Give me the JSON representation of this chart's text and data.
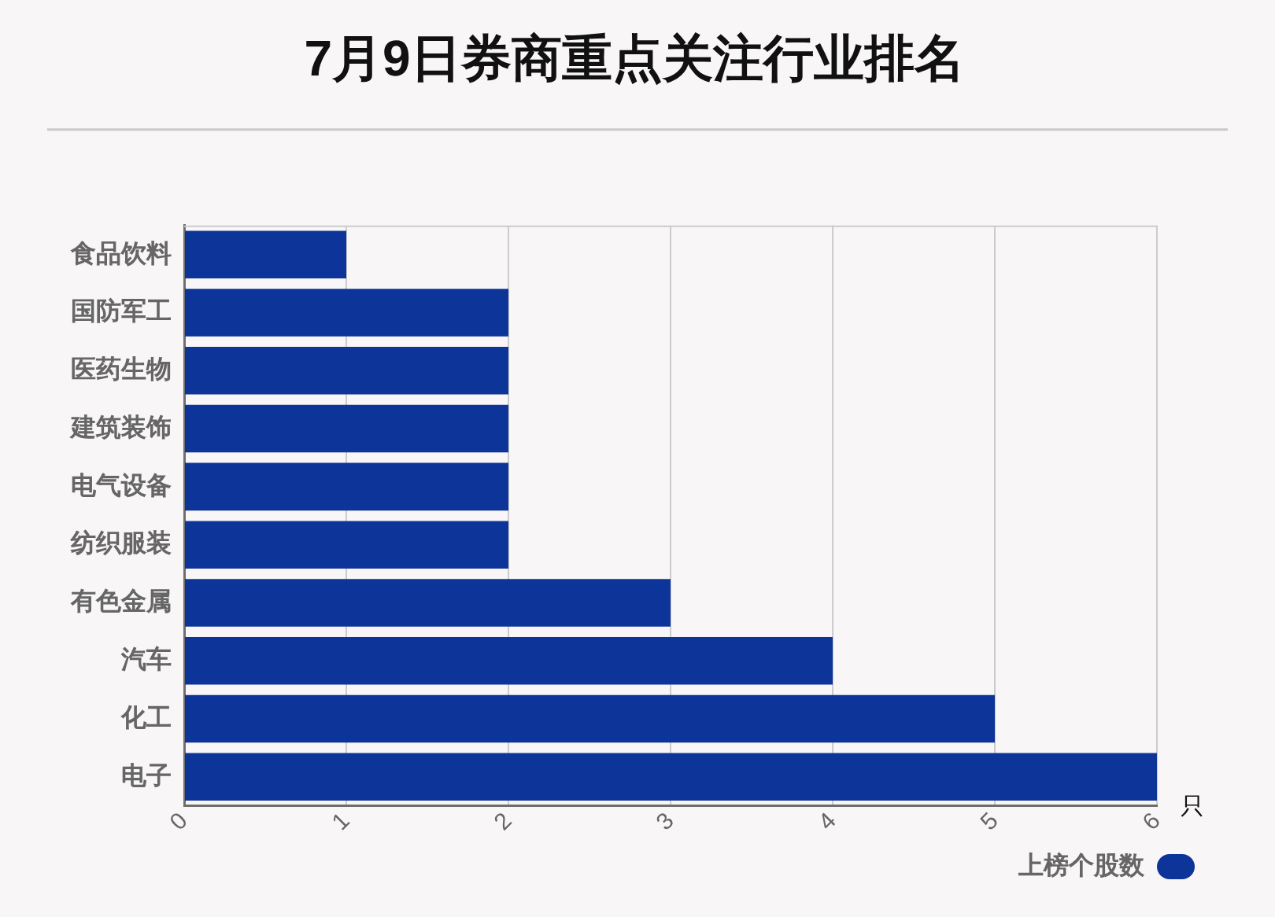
{
  "chart_data": {
    "type": "bar",
    "orientation": "horizontal",
    "title": "7月9日券商重点关注行业排名",
    "xlabel": "只",
    "categories": [
      "食品饮料",
      "国防军工",
      "医药生物",
      "建筑装饰",
      "电气设备",
      "纺织服装",
      "有色金属",
      "汽车",
      "化工",
      "电子"
    ],
    "series": [
      {
        "name": "上榜个股数",
        "color": "#0d3599",
        "values": [
          1,
          2,
          2,
          2,
          2,
          2,
          3,
          4,
          5,
          6
        ]
      }
    ],
    "xlim": [
      0,
      6
    ],
    "xticks": [
      0,
      1,
      2,
      3,
      4,
      5,
      6
    ],
    "grid": "x",
    "legend": "bottom right"
  }
}
